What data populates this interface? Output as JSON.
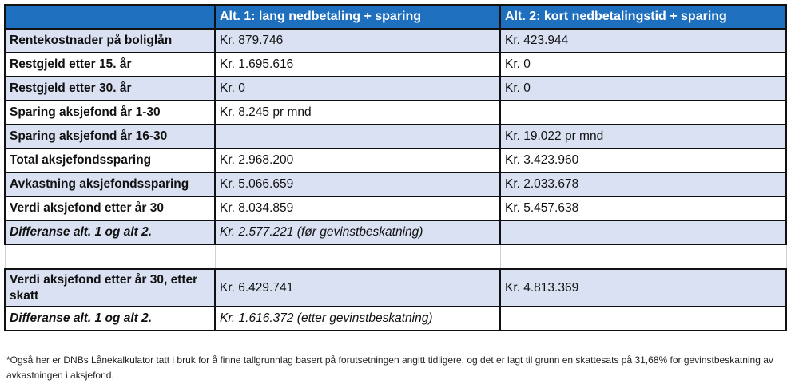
{
  "table": {
    "headers": [
      "",
      "Alt. 1: lang nedbetaling + sparing",
      "Alt. 2: kort nedbetalingstid + sparing"
    ],
    "rows": [
      {
        "label": "Rentekostnader på boliglån",
        "alt1": "Kr. 879.746",
        "alt2": "Kr. 423.944"
      },
      {
        "label": "Restgjeld etter 15. år",
        "alt1": "Kr. 1.695.616",
        "alt2": "Kr. 0"
      },
      {
        "label": "Restgjeld etter 30. år",
        "alt1": "Kr. 0",
        "alt2": "Kr. 0"
      },
      {
        "label": "Sparing aksjefond år 1-30",
        "alt1": "Kr. 8.245 pr mnd",
        "alt2": ""
      },
      {
        "label": "Sparing aksjefond år 16-30",
        "alt1": "",
        "alt2": "Kr. 19.022 pr mnd"
      },
      {
        "label": "Total aksjefondssparing",
        "alt1": "Kr. 2.968.200",
        "alt2": "Kr. 3.423.960"
      },
      {
        "label": "Avkastning aksjefondssparing",
        "alt1": "Kr. 5.066.659",
        "alt2": "Kr. 2.033.678"
      },
      {
        "label": "Verdi aksjefond etter år 30",
        "alt1": "Kr. 8.034.859",
        "alt2": "Kr. 5.457.638"
      },
      {
        "label": "Differanse alt. 1 og alt 2.",
        "alt1": "Kr. 2.577.221 (før gevinstbeskatning)",
        "alt2": ""
      },
      {
        "label": "Verdi aksjefond etter år 30, etter skatt",
        "alt1": "Kr. 6.429.741",
        "alt2": "Kr. 4.813.369"
      },
      {
        "label": "Differanse alt. 1 og alt 2.",
        "alt1": "Kr. 1.616.372 (etter gevinstbeskatning)",
        "alt2": ""
      }
    ]
  },
  "colors": {
    "header": "#1f6fbf",
    "shade": "#d9e1f2"
  },
  "footnote": "*Også her er DNBs Lånekalkulator tatt i bruk for å finne tallgrunnlag basert på forutsetningen angitt tidligere, og det er lagt til grunn en skattesats på 31,68% for gevinstbeskatning av avkastningen i aksjefond."
}
